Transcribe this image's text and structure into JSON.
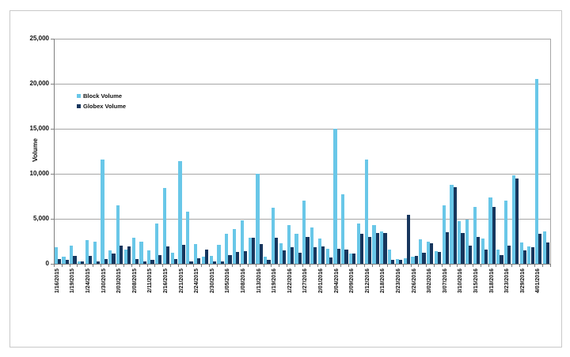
{
  "colors": {
    "block": "#69C7E8",
    "globex": "#17365D",
    "gridline": "#A6A6A6",
    "axis": "#7F7F7F",
    "frame_border": "#C9C9C9",
    "text": "#111111"
  },
  "chart_data": {
    "type": "bar",
    "title": "",
    "xlabel": "",
    "ylabel": "Volume",
    "ylim": [
      0,
      25000
    ],
    "y_tick_step": 5000,
    "y_tick_labels_top_to_bottom": [
      "25,000",
      "20,000",
      "15,000",
      "10,000",
      "5,000",
      "0"
    ],
    "grid": true,
    "legend_position": "upper-left-inside",
    "x_label_interval": 2,
    "series": [
      {
        "name": "Block Volume",
        "color": "#69C7E8"
      },
      {
        "name": "Globex Volume",
        "color": "#17365D"
      }
    ],
    "points": [
      {
        "label": "1/16/2015",
        "block": 1800,
        "globex": 500
      },
      {
        "label": "",
        "block": 800,
        "globex": 400
      },
      {
        "label": "1/19/2015",
        "block": 2000,
        "globex": 900
      },
      {
        "label": "",
        "block": 300,
        "globex": 250
      },
      {
        "label": "1/24/2015",
        "block": 2600,
        "globex": 900
      },
      {
        "label": "",
        "block": 2500,
        "globex": 250
      },
      {
        "label": "1/30/2015",
        "block": 11600,
        "globex": 500
      },
      {
        "label": "",
        "block": 1500,
        "globex": 1100
      },
      {
        "label": "2/03/2015",
        "block": 6500,
        "globex": 2000
      },
      {
        "label": "",
        "block": 1600,
        "globex": 1900
      },
      {
        "label": "2/08/2015",
        "block": 2900,
        "globex": 500
      },
      {
        "label": "",
        "block": 2500,
        "globex": 300
      },
      {
        "label": "2/11/2015",
        "block": 1500,
        "globex": 400
      },
      {
        "label": "",
        "block": 4500,
        "globex": 1000
      },
      {
        "label": "2/16/2015",
        "block": 8400,
        "globex": 1900
      },
      {
        "label": "",
        "block": 1200,
        "globex": 500
      },
      {
        "label": "2/21/2015",
        "block": 11400,
        "globex": 2100
      },
      {
        "label": "",
        "block": 5800,
        "globex": 300
      },
      {
        "label": "2/24/2015",
        "block": 2200,
        "globex": 600
      },
      {
        "label": "",
        "block": 800,
        "globex": 1600
      },
      {
        "label": "2/30/2015",
        "block": 900,
        "globex": 300
      },
      {
        "label": "",
        "block": 2100,
        "globex": 250
      },
      {
        "label": "1/05/2016",
        "block": 3300,
        "globex": 1000
      },
      {
        "label": "",
        "block": 3900,
        "globex": 1300
      },
      {
        "label": "1/08/2016",
        "block": 4800,
        "globex": 1400
      },
      {
        "label": "",
        "block": 2900,
        "globex": 2900
      },
      {
        "label": "1/13/2016",
        "block": 10000,
        "globex": 2200
      },
      {
        "label": "",
        "block": 800,
        "globex": 400
      },
      {
        "label": "1/19/2016",
        "block": 6200,
        "globex": 2900
      },
      {
        "label": "",
        "block": 2300,
        "globex": 1500
      },
      {
        "label": "1/22/2016",
        "block": 4300,
        "globex": 1800
      },
      {
        "label": "",
        "block": 3300,
        "globex": 1200
      },
      {
        "label": "1/27/2016",
        "block": 7000,
        "globex": 3000
      },
      {
        "label": "",
        "block": 4000,
        "globex": 1800
      },
      {
        "label": "2/01/2016",
        "block": 2800,
        "globex": 1900
      },
      {
        "label": "",
        "block": 1700,
        "globex": 700
      },
      {
        "label": "2/04/2016",
        "block": 15000,
        "globex": 1700
      },
      {
        "label": "",
        "block": 7700,
        "globex": 1600
      },
      {
        "label": "2/09/2016",
        "block": 1100,
        "globex": 1100
      },
      {
        "label": "",
        "block": 4500,
        "globex": 3300
      },
      {
        "label": "2/12/2016",
        "block": 11600,
        "globex": 3000
      },
      {
        "label": "",
        "block": 4300,
        "globex": 3400
      },
      {
        "label": "2/18/2016",
        "block": 3600,
        "globex": 3400
      },
      {
        "label": "",
        "block": 1600,
        "globex": 400
      },
      {
        "label": "2/23/2016",
        "block": 500,
        "globex": 400
      },
      {
        "label": "",
        "block": 600,
        "globex": 5400
      },
      {
        "label": "2/26/2016",
        "block": 800,
        "globex": 900
      },
      {
        "label": "",
        "block": 2700,
        "globex": 1200
      },
      {
        "label": "3/02/2016",
        "block": 2500,
        "globex": 2300
      },
      {
        "label": "",
        "block": 1400,
        "globex": 1300
      },
      {
        "label": "3/07/2016",
        "block": 6500,
        "globex": 3500
      },
      {
        "label": "",
        "block": 8800,
        "globex": 8500
      },
      {
        "label": "3/10/2016",
        "block": 4700,
        "globex": 3400
      },
      {
        "label": "",
        "block": 4900,
        "globex": 2000
      },
      {
        "label": "3/15/2016",
        "block": 6300,
        "globex": 3000
      },
      {
        "label": "",
        "block": 2800,
        "globex": 1600
      },
      {
        "label": "3/18/2016",
        "block": 7400,
        "globex": 6300
      },
      {
        "label": "",
        "block": 1600,
        "globex": 1000
      },
      {
        "label": "3/23/2016",
        "block": 7000,
        "globex": 2000
      },
      {
        "label": "",
        "block": 9800,
        "globex": 9500
      },
      {
        "label": "3/29/2016",
        "block": 2400,
        "globex": 1500
      },
      {
        "label": "",
        "block": 1900,
        "globex": 1800
      },
      {
        "label": "4/01/2016",
        "block": 20500,
        "globex": 3300
      },
      {
        "label": "",
        "block": 3600,
        "globex": 2400
      }
    ]
  }
}
